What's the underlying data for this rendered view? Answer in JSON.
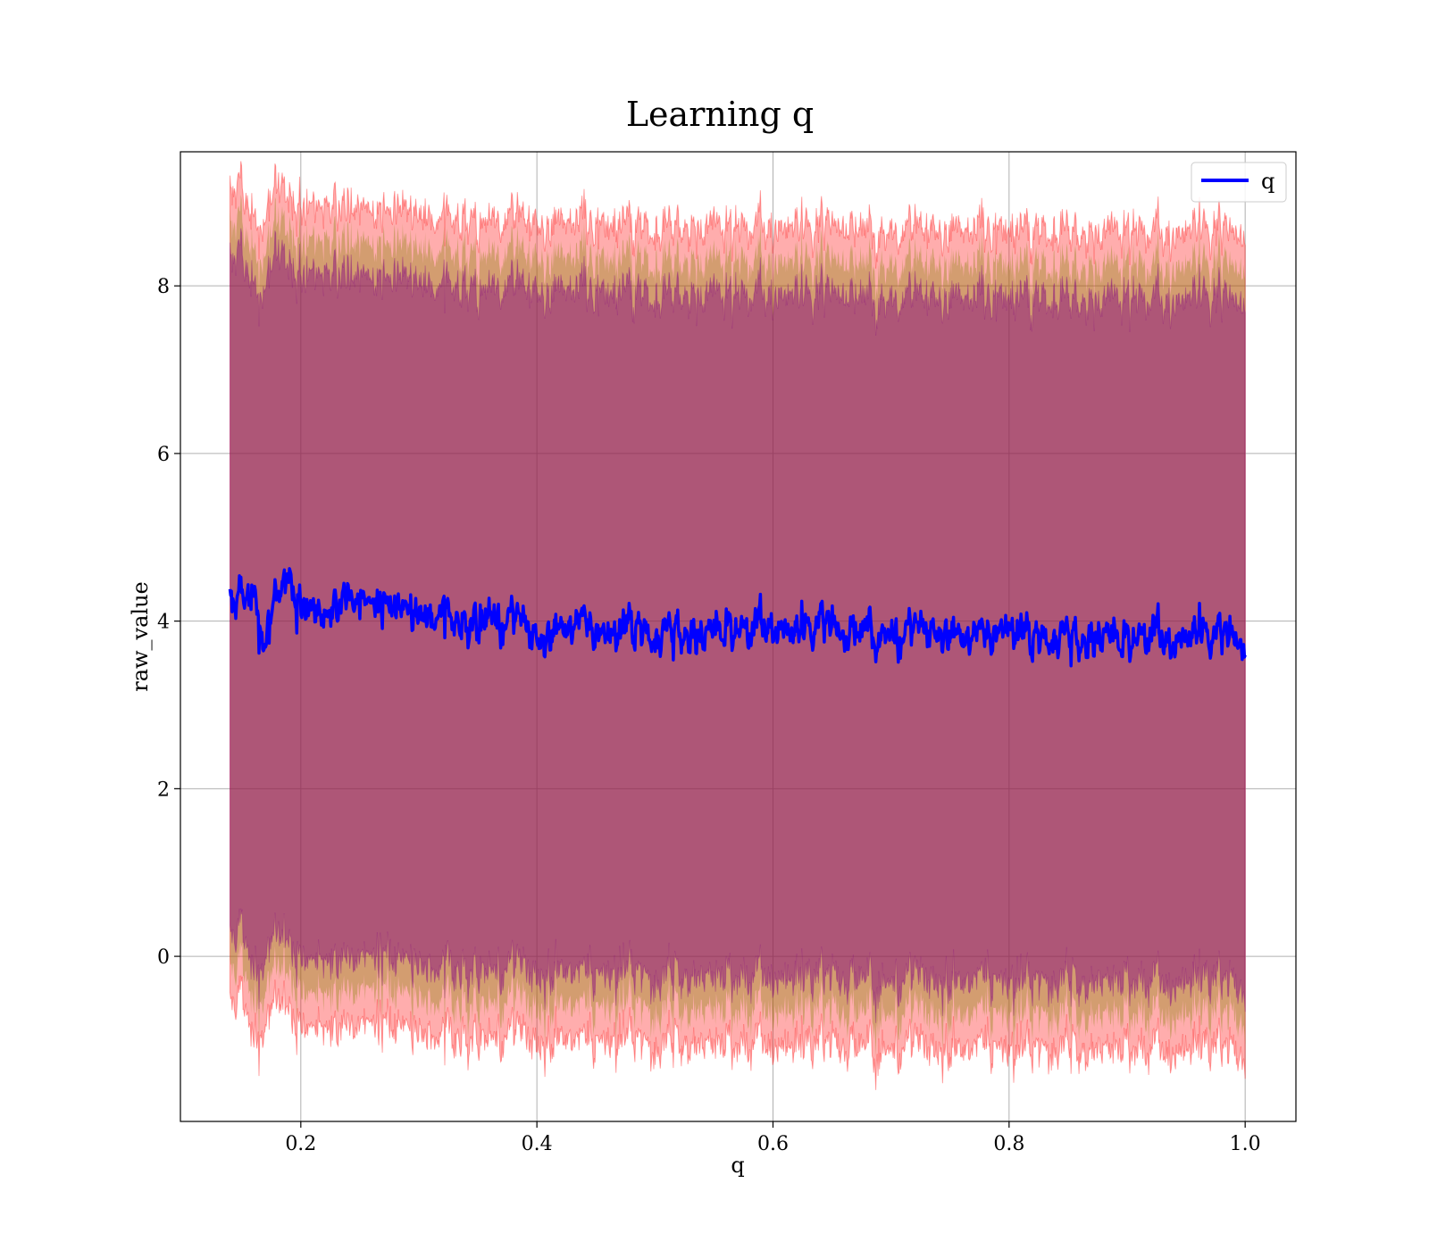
{
  "chart_data": {
    "type": "line",
    "title": "Learning q",
    "xlabel": "q",
    "ylabel": "raw_value",
    "xlim": [
      0.098,
      1.043
    ],
    "ylim": [
      -1.97,
      9.6
    ],
    "x_ticks": [
      0.2,
      0.4,
      0.6,
      0.8,
      1.0
    ],
    "x_tick_labels": [
      "0.2",
      "0.4",
      "0.6",
      "0.8",
      "1.0"
    ],
    "y_ticks": [
      0,
      2,
      4,
      6,
      8
    ],
    "y_tick_labels": [
      "0",
      "2",
      "4",
      "6",
      "8"
    ],
    "grid": true,
    "legend": {
      "position": "top-right",
      "entries": [
        "q"
      ]
    },
    "colors": {
      "line": "#0000ff",
      "band": "#ff0000",
      "band_inner": "#800080",
      "band_mid": "#808000"
    },
    "series": [
      {
        "name": "q",
        "x": [
          0.14,
          0.15,
          0.16,
          0.17,
          0.18,
          0.19,
          0.2,
          0.22,
          0.24,
          0.26,
          0.28,
          0.3,
          0.32,
          0.34,
          0.36,
          0.38,
          0.4,
          0.42,
          0.44,
          0.46,
          0.48,
          0.5,
          0.52,
          0.54,
          0.56,
          0.58,
          0.6,
          0.62,
          0.64,
          0.66,
          0.68,
          0.7,
          0.72,
          0.74,
          0.76,
          0.78,
          0.8,
          0.82,
          0.84,
          0.86,
          0.88,
          0.9,
          0.92,
          0.94,
          0.96,
          0.98,
          1.0
        ],
        "y": [
          4.25,
          4.45,
          4.3,
          3.8,
          4.35,
          4.5,
          4.2,
          4.05,
          4.3,
          4.15,
          4.25,
          4.05,
          4.15,
          3.95,
          4.1,
          4.0,
          3.85,
          3.9,
          4.0,
          3.8,
          3.95,
          3.85,
          3.9,
          3.85,
          3.95,
          3.9,
          4.0,
          3.85,
          3.95,
          3.9,
          3.85,
          3.9,
          3.85,
          3.95,
          3.8,
          3.85,
          3.9,
          3.8,
          3.85,
          3.8,
          3.85,
          3.8,
          3.85,
          3.8,
          3.85,
          3.8,
          3.8
        ],
        "upper": [
          8.6,
          8.9,
          8.3,
          8.4,
          8.8,
          8.6,
          8.5,
          8.45,
          8.5,
          8.4,
          8.55,
          8.35,
          8.4,
          8.3,
          8.4,
          8.35,
          8.3,
          8.3,
          8.35,
          8.25,
          8.3,
          8.25,
          8.3,
          8.25,
          8.3,
          8.25,
          8.3,
          8.25,
          8.25,
          8.3,
          8.2,
          8.25,
          8.2,
          8.25,
          8.2,
          8.25,
          8.2,
          8.2,
          8.25,
          8.2,
          8.2,
          8.25,
          8.2,
          8.2,
          8.25,
          8.2,
          8.2
        ],
        "lower": [
          -0.1,
          0.15,
          -0.6,
          -0.3,
          0.0,
          -0.2,
          -0.35,
          -0.45,
          -0.35,
          -0.4,
          -0.3,
          -0.45,
          -0.4,
          -0.5,
          -0.45,
          -0.5,
          -0.55,
          -0.5,
          -0.55,
          -0.55,
          -0.5,
          -0.6,
          -0.55,
          -0.6,
          -0.55,
          -0.6,
          -0.55,
          -0.6,
          -0.6,
          -0.55,
          -0.65,
          -0.6,
          -0.65,
          -0.6,
          -0.65,
          -0.6,
          -0.65,
          -0.65,
          -0.6,
          -0.65,
          -0.65,
          -0.6,
          -0.65,
          -0.65,
          -0.6,
          -0.65,
          -0.65
        ]
      }
    ]
  }
}
